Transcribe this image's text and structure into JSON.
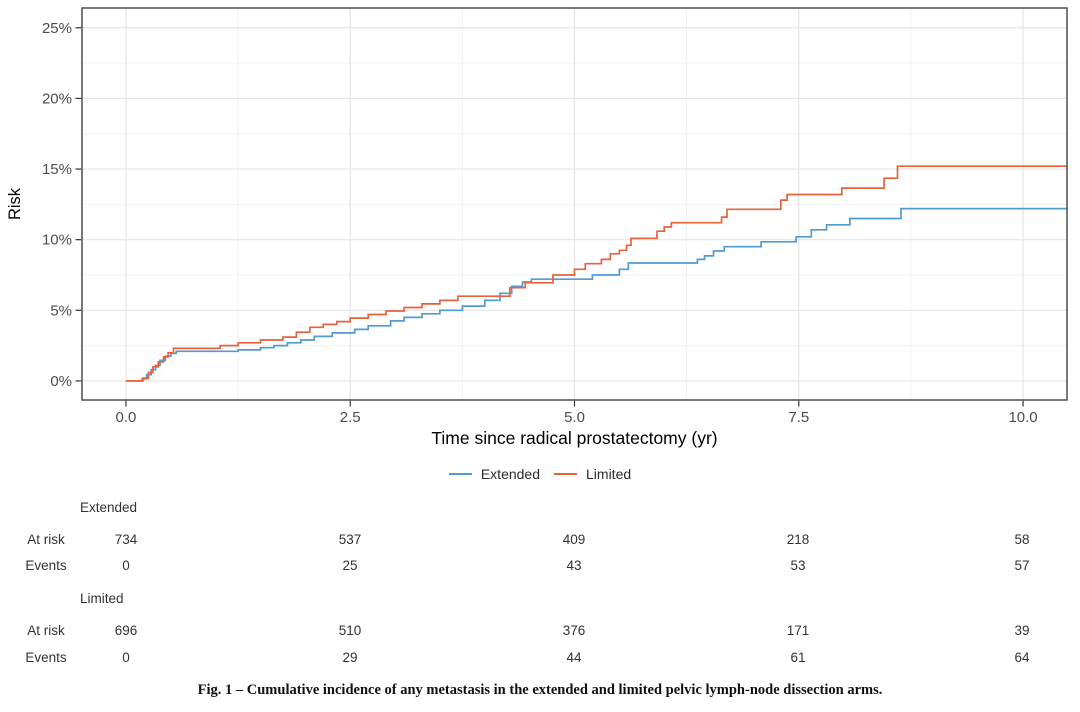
{
  "chart_data": {
    "type": "line",
    "subtype": "step-function-cumulative-incidence",
    "title": "",
    "xlabel": "Time since radical prostatectomy (yr)",
    "ylabel": "Risk",
    "xlim": [
      -0.49,
      10.49
    ],
    "ylim": [
      -1.35,
      26.4
    ],
    "grid": true,
    "legend_position": "bottom-center",
    "x_major_ticks": [
      0,
      2.5,
      5,
      7.5,
      10
    ],
    "x_tick_labels": [
      "0.0",
      "2.5",
      "5.0",
      "7.5",
      "10.0"
    ],
    "x_minor_ticks": [
      1.25,
      3.75,
      6.25,
      8.75
    ],
    "y_major_ticks": [
      0,
      5,
      10,
      15,
      20,
      25
    ],
    "y_tick_labels": [
      "0%",
      "5%",
      "10%",
      "15%",
      "20%",
      "25%"
    ],
    "y_minor_ticks": [
      2.5,
      7.5,
      12.5,
      17.5,
      22.5
    ],
    "series": [
      {
        "name": "Extended",
        "color": "#4F9BD2",
        "units": "percent risk",
        "points": [
          [
            0,
            0
          ],
          [
            0.18,
            0.15
          ],
          [
            0.23,
            0.45
          ],
          [
            0.28,
            0.8
          ],
          [
            0.33,
            1.1
          ],
          [
            0.38,
            1.45
          ],
          [
            0.44,
            1.75
          ],
          [
            0.5,
            1.95
          ],
          [
            0.56,
            2.1
          ],
          [
            1.25,
            2.2
          ],
          [
            1.5,
            2.35
          ],
          [
            1.65,
            2.5
          ],
          [
            1.8,
            2.7
          ],
          [
            1.95,
            2.9
          ],
          [
            2.1,
            3.15
          ],
          [
            2.3,
            3.4
          ],
          [
            2.55,
            3.65
          ],
          [
            2.7,
            3.9
          ],
          [
            2.95,
            4.25
          ],
          [
            3.1,
            4.5
          ],
          [
            3.3,
            4.75
          ],
          [
            3.5,
            5.0
          ],
          [
            3.75,
            5.3
          ],
          [
            4.0,
            5.7
          ],
          [
            4.17,
            6.2
          ],
          [
            4.3,
            6.7
          ],
          [
            4.42,
            7.0
          ],
          [
            4.52,
            7.2
          ],
          [
            5.2,
            7.5
          ],
          [
            5.5,
            7.9
          ],
          [
            5.6,
            8.35
          ],
          [
            6.37,
            8.6
          ],
          [
            6.45,
            8.85
          ],
          [
            6.55,
            9.2
          ],
          [
            6.67,
            9.5
          ],
          [
            7.08,
            9.85
          ],
          [
            7.47,
            10.2
          ],
          [
            7.64,
            10.7
          ],
          [
            7.81,
            11.05
          ],
          [
            8.07,
            11.5
          ],
          [
            8.64,
            12.2
          ],
          [
            10.49,
            12.2
          ]
        ]
      },
      {
        "name": "Limited",
        "color": "#E8613C",
        "units": "percent risk",
        "points": [
          [
            0,
            0
          ],
          [
            0.19,
            0.2
          ],
          [
            0.25,
            0.6
          ],
          [
            0.3,
            1.0
          ],
          [
            0.36,
            1.35
          ],
          [
            0.42,
            1.7
          ],
          [
            0.47,
            2.0
          ],
          [
            0.53,
            2.3
          ],
          [
            1.05,
            2.5
          ],
          [
            1.25,
            2.7
          ],
          [
            1.5,
            2.9
          ],
          [
            1.75,
            3.1
          ],
          [
            1.9,
            3.45
          ],
          [
            2.05,
            3.8
          ],
          [
            2.2,
            4.0
          ],
          [
            2.35,
            4.2
          ],
          [
            2.5,
            4.45
          ],
          [
            2.7,
            4.7
          ],
          [
            2.9,
            4.95
          ],
          [
            3.1,
            5.2
          ],
          [
            3.3,
            5.45
          ],
          [
            3.5,
            5.7
          ],
          [
            3.7,
            6.0
          ],
          [
            4.28,
            6.6
          ],
          [
            4.45,
            6.95
          ],
          [
            4.76,
            7.5
          ],
          [
            5.0,
            7.9
          ],
          [
            5.12,
            8.3
          ],
          [
            5.3,
            8.6
          ],
          [
            5.4,
            9.0
          ],
          [
            5.5,
            9.25
          ],
          [
            5.58,
            9.6
          ],
          [
            5.63,
            10.1
          ],
          [
            5.92,
            10.6
          ],
          [
            6.0,
            10.9
          ],
          [
            6.08,
            11.2
          ],
          [
            6.64,
            11.6
          ],
          [
            6.7,
            12.15
          ],
          [
            7.3,
            12.8
          ],
          [
            7.37,
            13.2
          ],
          [
            7.98,
            13.65
          ],
          [
            8.45,
            14.35
          ],
          [
            8.6,
            15.2
          ],
          [
            10.49,
            15.2
          ]
        ]
      }
    ]
  },
  "risk_table": {
    "row_labels": {
      "at_risk": "At risk",
      "events": "Events"
    },
    "time_columns_labels": [
      "0.0",
      "2.5",
      "5.0",
      "7.5",
      "10.0"
    ],
    "groups": [
      {
        "name": "Extended",
        "at_risk": [
          "734",
          "537",
          "409",
          "218",
          "58"
        ],
        "events": [
          "0",
          "25",
          "43",
          "53",
          "57"
        ]
      },
      {
        "name": "Limited",
        "at_risk": [
          "696",
          "510",
          "376",
          "171",
          "39"
        ],
        "events": [
          "0",
          "29",
          "44",
          "61",
          "64"
        ]
      }
    ]
  },
  "caption": "Fig. 1 – Cumulative incidence of any metastasis in the extended and limited pelvic lymph-node dissection arms.",
  "colors": {
    "extended": "#4F9BD2",
    "limited": "#E8613C",
    "grid_major": "#E4E4E4",
    "grid_minor": "#F0F0F0",
    "panel_border": "#4D4D4D",
    "tick_mark": "#333333",
    "tick_text": "#4D4D4D",
    "axis_title": "#000000",
    "table_text": "#333333",
    "background": "#FFFFFF"
  }
}
